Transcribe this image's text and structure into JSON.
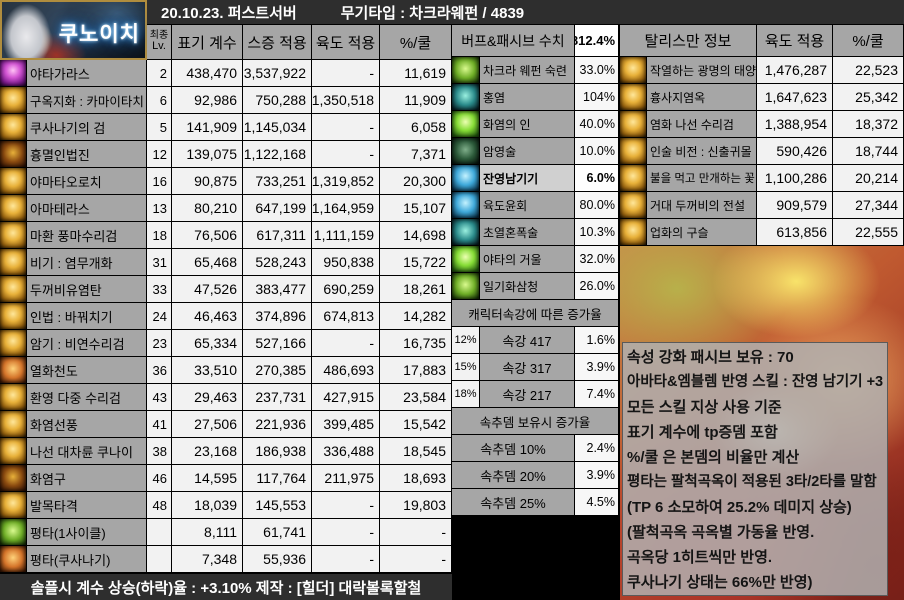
{
  "header": {
    "portrait_label": "쿠노이치",
    "date_server": "20.10.23. 퍼스트서버",
    "weapon": "무기타입 : 차크라웨펀 / 4839"
  },
  "skill_table": {
    "header": {
      "lv_top": "최종",
      "lv_bottom": "Lv.",
      "coef": "표기 계수",
      "seung": "스증 적용",
      "yukdo": "육도 적용",
      "pct": "%/쿨"
    },
    "rows": [
      {
        "icon": "purple",
        "name": "야타가라스",
        "lv": "2",
        "coef": "438,470",
        "seung": "3,537,922",
        "yukdo": "-",
        "pct": "11,619"
      },
      {
        "icon": "gold",
        "name": "구옥지화 : 카마이타치",
        "lv": "6",
        "coef": "92,986",
        "seung": "750,288",
        "yukdo": "1,350,518",
        "pct": "11,909"
      },
      {
        "icon": "gold",
        "name": "쿠사나기의 검",
        "lv": "5",
        "coef": "141,909",
        "seung": "1,145,034",
        "yukdo": "-",
        "pct": "6,058"
      },
      {
        "icon": "darkgold",
        "name": "흉멸인법진",
        "lv": "12",
        "coef": "139,075",
        "seung": "1,122,168",
        "yukdo": "-",
        "pct": "7,371"
      },
      {
        "icon": "gold",
        "name": "야마타오로치",
        "lv": "16",
        "coef": "90,875",
        "seung": "733,251",
        "yukdo": "1,319,852",
        "pct": "20,300"
      },
      {
        "icon": "gold",
        "name": "아마테라스",
        "lv": "13",
        "coef": "80,210",
        "seung": "647,199",
        "yukdo": "1,164,959",
        "pct": "15,107"
      },
      {
        "icon": "gold",
        "name": "마환 풍마수리검",
        "lv": "18",
        "coef": "76,506",
        "seung": "617,311",
        "yukdo": "1,111,159",
        "pct": "14,698"
      },
      {
        "icon": "gold",
        "name": "비기 : 염무개화",
        "lv": "31",
        "coef": "65,468",
        "seung": "528,243",
        "yukdo": "950,838",
        "pct": "15,722"
      },
      {
        "icon": "gold",
        "name": "두꺼비유염탄",
        "lv": "33",
        "coef": "47,526",
        "seung": "383,477",
        "yukdo": "690,259",
        "pct": "18,261"
      },
      {
        "icon": "gold",
        "name": "인법 : 바꿔치기",
        "lv": "24",
        "coef": "46,463",
        "seung": "374,896",
        "yukdo": "674,813",
        "pct": "14,282"
      },
      {
        "icon": "gold",
        "name": "암기 : 비연수리검",
        "lv": "23",
        "coef": "65,334",
        "seung": "527,166",
        "yukdo": "-",
        "pct": "16,735"
      },
      {
        "icon": "orange",
        "name": "열화천도",
        "lv": "36",
        "coef": "33,510",
        "seung": "270,385",
        "yukdo": "486,693",
        "pct": "17,883"
      },
      {
        "icon": "gold",
        "name": "환영 다중 수리검",
        "lv": "43",
        "coef": "29,463",
        "seung": "237,731",
        "yukdo": "427,915",
        "pct": "23,584"
      },
      {
        "icon": "gold",
        "name": "화염선풍",
        "lv": "41",
        "coef": "27,506",
        "seung": "221,936",
        "yukdo": "399,485",
        "pct": "15,542"
      },
      {
        "icon": "gold",
        "name": "나선 대차륜 쿠나이",
        "lv": "38",
        "coef": "23,168",
        "seung": "186,938",
        "yukdo": "336,488",
        "pct": "18,545"
      },
      {
        "icon": "darkgold",
        "name": "화염구",
        "lv": "46",
        "coef": "14,595",
        "seung": "117,764",
        "yukdo": "211,975",
        "pct": "18,693"
      },
      {
        "icon": "gold",
        "name": "발목타격",
        "lv": "48",
        "coef": "18,039",
        "seung": "145,553",
        "yukdo": "-",
        "pct": "19,803"
      },
      {
        "icon": "green",
        "name": "평타(1사이클)",
        "lv": "",
        "coef": "8,111",
        "seung": "61,741",
        "yukdo": "-",
        "pct": "-"
      },
      {
        "icon": "orange",
        "name": "평타(쿠사나기)",
        "lv": "",
        "coef": "7,348",
        "seung": "55,936",
        "yukdo": "-",
        "pct": "-"
      }
    ]
  },
  "footer": {
    "text": "솔플시 계수 상승(하락)율 : +3.10% 제작 : [힐더] 대락볼록할철"
  },
  "buff_table": {
    "title": "버프&패시브 수치",
    "total": "812.4%",
    "buffs": [
      {
        "icon": "green",
        "name": "차크라 웨펀 숙련",
        "value": "33.0%",
        "bold": false
      },
      {
        "icon": "teal",
        "name": "홍염",
        "value": "104%",
        "bold": false
      },
      {
        "icon": "brightgreen",
        "name": "화염의 인",
        "value": "40.0%",
        "bold": false
      },
      {
        "icon": "darkslate",
        "name": "암영술",
        "value": "10.0%",
        "bold": false
      },
      {
        "icon": "cyan",
        "name": "잔영남기기",
        "value": "6.0%",
        "bold": true
      },
      {
        "icon": "cyan",
        "name": "육도윤회",
        "value": "80.0%",
        "bold": false
      },
      {
        "icon": "teal",
        "name": "초열혼폭술",
        "value": "10.3%",
        "bold": false
      },
      {
        "icon": "brightgreen",
        "name": "야타의 거울",
        "value": "32.0%",
        "bold": false
      },
      {
        "icon": "green",
        "name": "일기화삼청",
        "value": "26.0%",
        "bold": false
      }
    ],
    "element_section": {
      "title": "캐릭터속강에 따른 증가율",
      "rows": [
        {
          "tag": "12%",
          "label": "속강 417",
          "value": "1.6%"
        },
        {
          "tag": "15%",
          "label": "속강 317",
          "value": "3.9%"
        },
        {
          "tag": "18%",
          "label": "속강 217",
          "value": "7.4%"
        }
      ]
    },
    "proc_section": {
      "title": "속추뎀 보유시 증가율",
      "rows": [
        {
          "label": "속추뎀 10%",
          "value": "2.4%"
        },
        {
          "label": "속추뎀 20%",
          "value": "3.9%"
        },
        {
          "label": "속추뎀 25%",
          "value": "4.5%"
        }
      ]
    }
  },
  "talisman_table": {
    "title": "탈리스만 정보",
    "col_yukdo": "육도 적용",
    "col_pct": "%/쿨",
    "rows": [
      {
        "icon": "gold",
        "name": "작열하는 광명의 태양",
        "yukdo": "1,476,287",
        "pct": "22,523"
      },
      {
        "icon": "gold",
        "name": "흉사지염옥",
        "yukdo": "1,647,623",
        "pct": "25,342"
      },
      {
        "icon": "gold",
        "name": "염화 나선 수리검",
        "yukdo": "1,388,954",
        "pct": "18,372"
      },
      {
        "icon": "gold",
        "name": "인술 비전 : 신출귀몰",
        "yukdo": "590,426",
        "pct": "18,744"
      },
      {
        "icon": "gold",
        "name": "불을 먹고 만개하는 꽃",
        "yukdo": "1,100,286",
        "pct": "20,214"
      },
      {
        "icon": "gold",
        "name": "거대 두꺼비의 전설",
        "yukdo": "909,579",
        "pct": "27,344"
      },
      {
        "icon": "gold",
        "name": "업화의 구슬",
        "yukdo": "613,856",
        "pct": "22,555"
      }
    ]
  },
  "notes": {
    "lines": [
      "속성 강화 패시브 보유 : 70",
      "아바타&엠블렘 반영 스킬 : 잔영 남기기 +3",
      "모든 스킬 지상 사용 기준",
      "표기 계수에 tp증뎀 포함",
      "%/쿨 은 본뎀의 비율만 계산",
      "평타는 팔척곡옥이 적용된 3타/2타를 말함",
      "(TP 6 소모하여 25.2% 데미지 상승)",
      "(팔척곡옥 곡옥별 가동율 반영.",
      "곡옥당 1히트씩만 반영.",
      "쿠사나기 상태는 66%만 반영)"
    ]
  },
  "colors": {
    "label_bg": "#a6a6a6",
    "value_bg": "#f2f2f2",
    "bar_bg": "#2e2e2e",
    "highlight_label": "#d0d0d0",
    "logo_glow": "#3f9fe8",
    "frame_gold": "#b08d3e"
  }
}
